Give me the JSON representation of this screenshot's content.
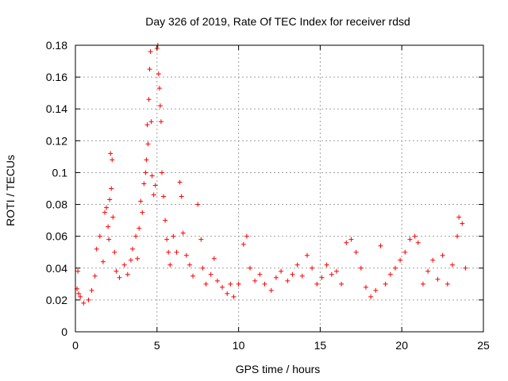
{
  "chart_data": {
    "type": "scatter",
    "title": "Day 326 of 2019, Rate Of TEC Index for receiver rdsd",
    "xlabel": "GPS time / hours",
    "ylabel": "ROTI / TECUs",
    "xlim": [
      0,
      25
    ],
    "ylim": [
      0,
      0.18
    ],
    "xticks": [
      0,
      5,
      10,
      15,
      20,
      25
    ],
    "yticks": [
      0,
      0.02,
      0.04,
      0.06,
      0.08,
      0.1,
      0.12,
      0.14,
      0.16,
      0.18
    ],
    "ytick_labels": [
      "0",
      "0.02",
      "0.04",
      "0.06",
      "0.08",
      "0.1",
      "0.12",
      "0.14",
      "0.16",
      "0.18"
    ],
    "grid": true,
    "marker": "+",
    "color": "#ff0000",
    "series": [
      {
        "x": [
          0.1,
          0.15,
          0.2,
          0.3,
          0.5,
          0.8,
          1.0,
          1.2,
          1.3,
          1.5,
          1.7,
          1.8,
          1.9,
          2.0,
          2.05,
          2.1,
          2.15,
          2.2,
          2.25,
          2.3,
          2.4,
          2.5,
          2.7,
          3.0,
          3.2,
          3.4,
          3.5,
          3.7,
          3.8,
          3.9,
          4.0,
          4.1,
          4.2,
          4.3,
          4.35,
          4.4,
          4.45,
          4.5,
          4.55,
          4.6,
          4.65,
          4.7,
          4.8,
          4.9,
          5.0,
          5.05,
          5.1,
          5.15,
          5.2,
          5.25,
          5.3,
          5.4,
          5.5,
          5.6,
          5.7,
          5.8,
          6.0,
          6.2,
          6.4,
          6.5,
          6.6,
          6.8,
          7.0,
          7.2,
          7.5,
          7.7,
          7.8,
          8.0,
          8.3,
          8.5,
          8.7,
          9.0,
          9.3,
          9.5,
          9.7,
          10.0,
          10.3,
          10.5,
          10.7,
          11.0,
          11.3,
          11.6,
          12.0,
          12.3,
          12.6,
          13.0,
          13.3,
          13.6,
          13.9,
          14.2,
          14.5,
          14.8,
          15.1,
          15.4,
          15.7,
          16.0,
          16.3,
          16.6,
          16.9,
          17.2,
          17.5,
          17.8,
          18.1,
          18.4,
          18.7,
          19.0,
          19.3,
          19.6,
          19.9,
          20.2,
          20.5,
          20.8,
          21.0,
          21.3,
          21.6,
          21.9,
          22.2,
          22.5,
          22.8,
          23.1,
          23.4,
          23.5,
          23.7,
          23.9
        ],
        "y": [
          0.027,
          0.038,
          0.024,
          0.022,
          0.018,
          0.02,
          0.026,
          0.035,
          0.052,
          0.06,
          0.044,
          0.075,
          0.078,
          0.066,
          0.058,
          0.083,
          0.112,
          0.09,
          0.108,
          0.072,
          0.05,
          0.038,
          0.034,
          0.042,
          0.036,
          0.045,
          0.052,
          0.06,
          0.046,
          0.065,
          0.082,
          0.075,
          0.093,
          0.1,
          0.108,
          0.13,
          0.118,
          0.146,
          0.165,
          0.176,
          0.132,
          0.098,
          0.086,
          0.092,
          0.178,
          0.18,
          0.162,
          0.153,
          0.142,
          0.132,
          0.1,
          0.085,
          0.07,
          0.058,
          0.05,
          0.042,
          0.06,
          0.05,
          0.094,
          0.085,
          0.062,
          0.048,
          0.042,
          0.035,
          0.08,
          0.058,
          0.04,
          0.03,
          0.036,
          0.046,
          0.032,
          0.028,
          0.024,
          0.03,
          0.022,
          0.03,
          0.055,
          0.06,
          0.04,
          0.032,
          0.036,
          0.03,
          0.026,
          0.034,
          0.038,
          0.032,
          0.036,
          0.042,
          0.035,
          0.048,
          0.04,
          0.03,
          0.034,
          0.042,
          0.036,
          0.038,
          0.03,
          0.056,
          0.058,
          0.05,
          0.04,
          0.028,
          0.022,
          0.026,
          0.054,
          0.03,
          0.036,
          0.04,
          0.045,
          0.05,
          0.058,
          0.06,
          0.056,
          0.03,
          0.038,
          0.045,
          0.033,
          0.048,
          0.03,
          0.042,
          0.06,
          0.072,
          0.068,
          0.04
        ]
      }
    ]
  }
}
